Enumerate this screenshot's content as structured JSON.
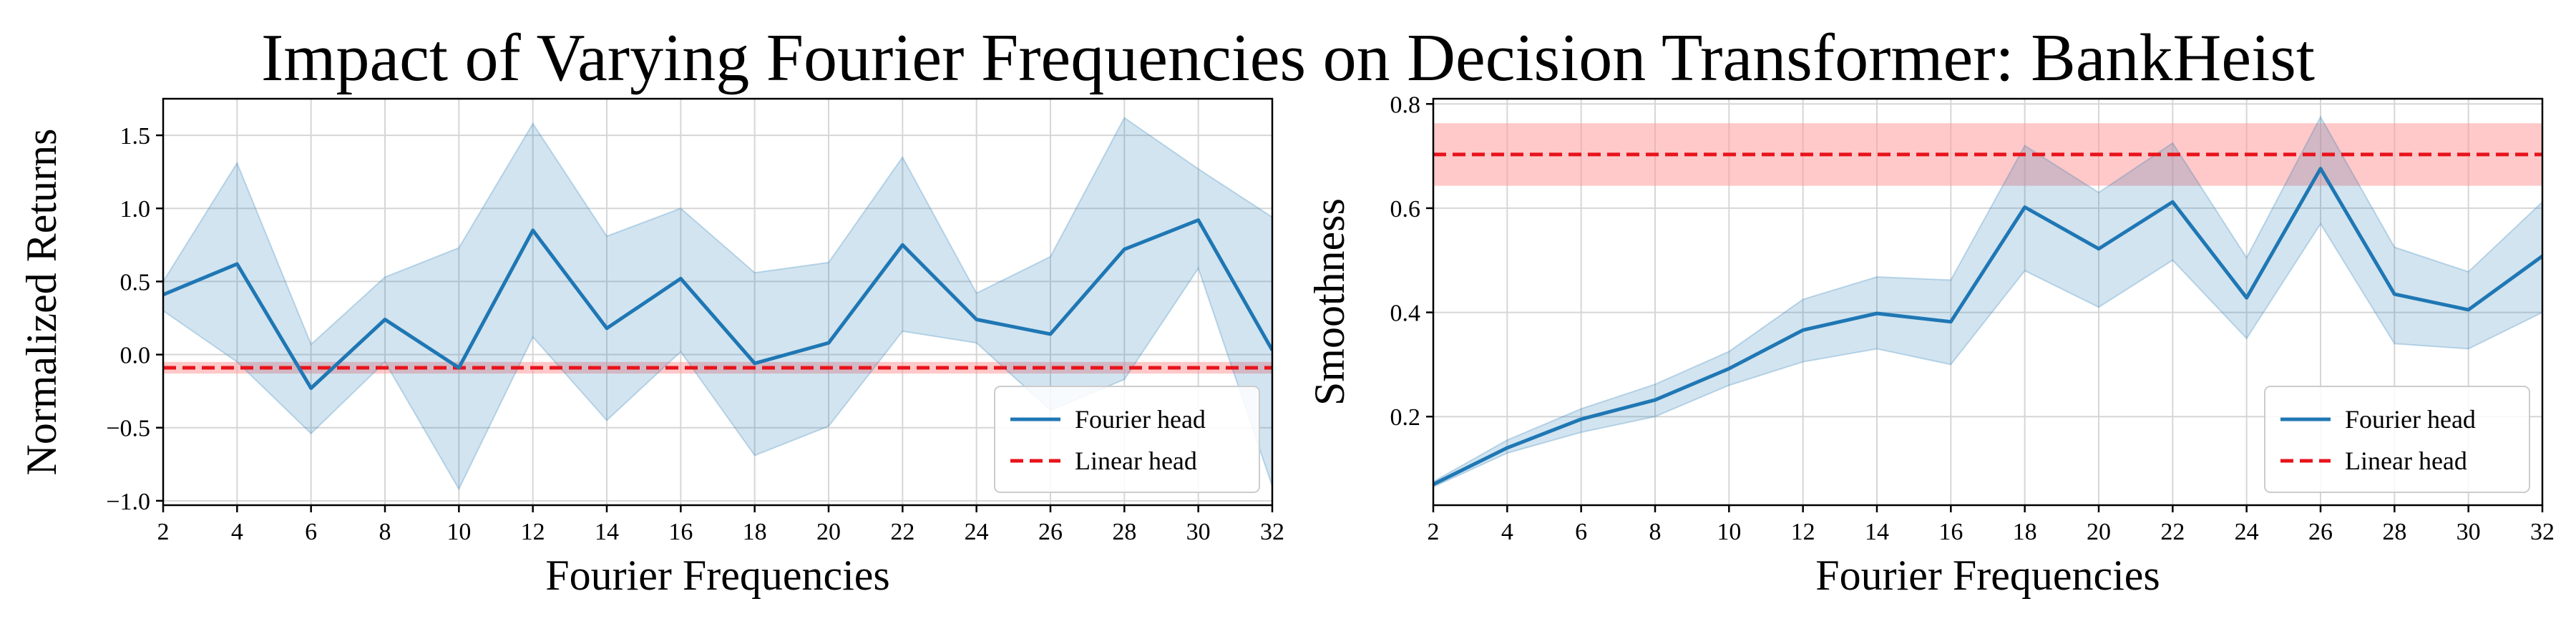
{
  "figure": {
    "title": "Impact of Varying Fourier Frequencies on Decision Transformer: BankHeist"
  },
  "colors": {
    "fourier": "#1f77b4",
    "linear": "#e8131b",
    "linear_band": "#ff9d9d",
    "fourier_band": "#1f77b4",
    "grid": "#d6d6d6"
  },
  "chart_data": [
    {
      "type": "line",
      "title": "",
      "xlabel": "Fourier Frequencies",
      "ylabel": "Normalized Returns",
      "x": [
        2,
        4,
        6,
        8,
        10,
        12,
        14,
        16,
        18,
        20,
        22,
        24,
        26,
        28,
        30,
        32
      ],
      "xlim": [
        2,
        32
      ],
      "ylim": [
        -1.03,
        1.75
      ],
      "xticks": [
        "2",
        "4",
        "6",
        "8",
        "10",
        "12",
        "14",
        "16",
        "18",
        "20",
        "22",
        "24",
        "26",
        "28",
        "30",
        "32"
      ],
      "yticks": [
        -1.0,
        -0.5,
        0.0,
        0.5,
        1.0,
        1.5
      ],
      "ytick_labels": [
        "−1.0",
        "−0.5",
        "0.0",
        "0.5",
        "1.0",
        "1.5"
      ],
      "grid": true,
      "legend_position": "lower-right",
      "series": [
        {
          "name": "Fourier head",
          "style": "solid",
          "values": [
            0.41,
            0.62,
            -0.23,
            0.24,
            -0.09,
            0.85,
            0.18,
            0.52,
            -0.06,
            0.08,
            0.75,
            0.24,
            0.14,
            0.72,
            0.92,
            0.03
          ],
          "band_lower": [
            0.3,
            -0.05,
            -0.54,
            -0.05,
            -0.92,
            0.12,
            -0.45,
            0.02,
            -0.69,
            -0.49,
            0.16,
            0.08,
            -0.38,
            -0.17,
            0.59,
            -0.9
          ],
          "band_upper": [
            0.5,
            1.31,
            0.07,
            0.53,
            0.73,
            1.58,
            0.81,
            1.0,
            0.56,
            0.63,
            1.35,
            0.42,
            0.67,
            1.62,
            1.27,
            0.94
          ]
        },
        {
          "name": "Linear head",
          "style": "dashed",
          "constant": -0.09,
          "band_lower": -0.13,
          "band_upper": -0.05
        }
      ]
    },
    {
      "type": "line",
      "title": "",
      "xlabel": "Fourier Frequencies",
      "ylabel": "Smoothness",
      "x": [
        2,
        4,
        6,
        8,
        10,
        12,
        14,
        16,
        18,
        20,
        22,
        24,
        26,
        28,
        30,
        32
      ],
      "xlim": [
        2,
        32
      ],
      "ylim": [
        0.03,
        0.81
      ],
      "xticks": [
        "2",
        "4",
        "6",
        "8",
        "10",
        "12",
        "14",
        "16",
        "18",
        "20",
        "22",
        "24",
        "26",
        "28",
        "30",
        "32"
      ],
      "yticks": [
        0.2,
        0.4,
        0.6,
        0.8
      ],
      "ytick_labels": [
        "0.2",
        "0.4",
        "0.6",
        "0.8"
      ],
      "grid": true,
      "legend_position": "lower-right",
      "series": [
        {
          "name": "Fourier head",
          "style": "solid",
          "values": [
            0.07,
            0.14,
            0.195,
            0.232,
            0.292,
            0.366,
            0.398,
            0.382,
            0.602,
            0.522,
            0.612,
            0.428,
            0.676,
            0.435,
            0.405,
            0.508
          ],
          "band_lower": [
            0.065,
            0.13,
            0.17,
            0.2,
            0.26,
            0.305,
            0.33,
            0.3,
            0.48,
            0.41,
            0.5,
            0.35,
            0.57,
            0.34,
            0.33,
            0.4
          ],
          "band_upper": [
            0.075,
            0.155,
            0.215,
            0.262,
            0.325,
            0.425,
            0.468,
            0.462,
            0.72,
            0.63,
            0.725,
            0.505,
            0.775,
            0.525,
            0.478,
            0.612
          ]
        },
        {
          "name": "Linear head",
          "style": "dashed",
          "constant": 0.703,
          "band_lower": 0.643,
          "band_upper": 0.763
        }
      ]
    }
  ]
}
